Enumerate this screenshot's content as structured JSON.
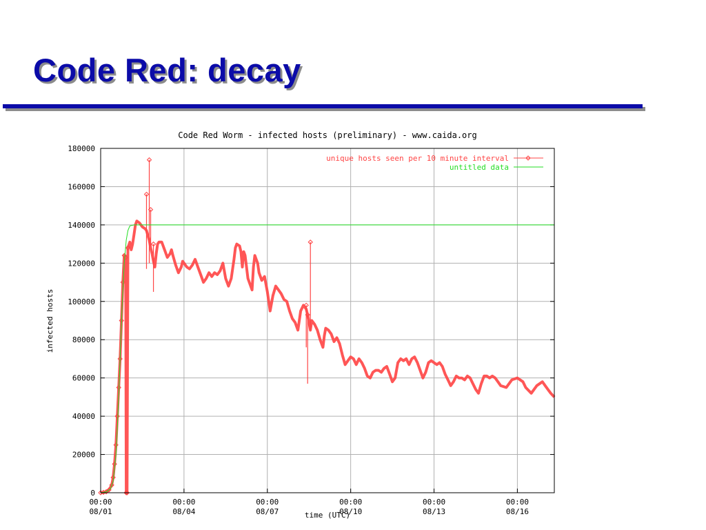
{
  "slide": {
    "title": "Code Red: decay"
  },
  "colors": {
    "title": "#0b0ba8",
    "rule": "#0b0ba8",
    "series_hosts": "#ff4444",
    "series_untitled": "#22dd22",
    "grid": "#b0b0b0"
  },
  "chart_data": {
    "type": "line",
    "title": "Code Red Worm - infected hosts (preliminary) - www.caida.org",
    "xlabel": "time (UTC)",
    "ylabel": "infected hosts",
    "ylim": [
      0,
      180000
    ],
    "xlim_days": [
      0,
      16.33
    ],
    "grid": true,
    "legend_position": "top-right",
    "x_tick_days": [
      0,
      3,
      6,
      9,
      12,
      15
    ],
    "x_ticks": [
      [
        "00:00",
        "08/01"
      ],
      [
        "00:00",
        "08/04"
      ],
      [
        "00:00",
        "08/07"
      ],
      [
        "00:00",
        "08/10"
      ],
      [
        "00:00",
        "08/13"
      ],
      [
        "00:00",
        "08/16"
      ]
    ],
    "y_ticks": [
      0,
      20000,
      40000,
      60000,
      80000,
      100000,
      120000,
      140000,
      160000,
      180000
    ],
    "y_tick_labels": [
      "0",
      "20000",
      "40000",
      "60000",
      "80000",
      "100000",
      "120000",
      "140000",
      "160000",
      "180000"
    ],
    "series": [
      {
        "name": "unique hosts seen per 10 minute interval",
        "color": "#ff4444",
        "marker": "diamond",
        "points": [
          [
            0.0,
            0
          ],
          [
            0.1,
            200
          ],
          [
            0.2,
            500
          ],
          [
            0.3,
            1500
          ],
          [
            0.4,
            4000
          ],
          [
            0.45,
            8000
          ],
          [
            0.5,
            15000
          ],
          [
            0.55,
            25000
          ],
          [
            0.6,
            40000
          ],
          [
            0.65,
            55000
          ],
          [
            0.7,
            70000
          ],
          [
            0.75,
            90000
          ],
          [
            0.8,
            110000
          ],
          [
            0.85,
            124000
          ],
          [
            0.9,
            123000
          ],
          [
            0.92,
            0
          ],
          [
            0.95,
            0
          ],
          [
            0.98,
            128000
          ],
          [
            1.05,
            131000
          ],
          [
            1.1,
            127000
          ],
          [
            1.15,
            130000
          ],
          [
            1.2,
            135000
          ],
          [
            1.25,
            140000
          ],
          [
            1.3,
            142000
          ],
          [
            1.4,
            141000
          ],
          [
            1.5,
            139000
          ],
          [
            1.6,
            138000
          ],
          [
            1.65,
            137000
          ],
          [
            1.75,
            132000
          ],
          [
            1.8,
            128000
          ],
          [
            1.85,
            125000
          ],
          [
            1.9,
            121000
          ],
          [
            1.95,
            118000
          ],
          [
            2.0,
            125000
          ],
          [
            2.05,
            130000
          ],
          [
            2.1,
            131000
          ],
          [
            2.2,
            131000
          ],
          [
            2.3,
            127000
          ],
          [
            2.4,
            123000
          ],
          [
            2.5,
            125000
          ],
          [
            2.55,
            127000
          ],
          [
            2.6,
            124000
          ],
          [
            2.7,
            119000
          ],
          [
            2.8,
            115000
          ],
          [
            2.9,
            118000
          ],
          [
            2.95,
            121000
          ],
          [
            3.0,
            120000
          ],
          [
            3.1,
            118000
          ],
          [
            3.2,
            117000
          ],
          [
            3.3,
            119000
          ],
          [
            3.4,
            122000
          ],
          [
            3.5,
            118000
          ],
          [
            3.6,
            114000
          ],
          [
            3.7,
            110000
          ],
          [
            3.8,
            112000
          ],
          [
            3.9,
            115000
          ],
          [
            4.0,
            113000
          ],
          [
            4.1,
            115000
          ],
          [
            4.2,
            114000
          ],
          [
            4.3,
            116000
          ],
          [
            4.4,
            120000
          ],
          [
            4.5,
            112000
          ],
          [
            4.6,
            108000
          ],
          [
            4.7,
            112000
          ],
          [
            4.8,
            122000
          ],
          [
            4.85,
            128000
          ],
          [
            4.9,
            130000
          ],
          [
            5.0,
            129000
          ],
          [
            5.05,
            126000
          ],
          [
            5.1,
            118000
          ],
          [
            5.15,
            126000
          ],
          [
            5.2,
            124000
          ],
          [
            5.3,
            112000
          ],
          [
            5.4,
            108000
          ],
          [
            5.45,
            106000
          ],
          [
            5.5,
            118000
          ],
          [
            5.55,
            124000
          ],
          [
            5.6,
            122000
          ],
          [
            5.65,
            120000
          ],
          [
            5.7,
            115000
          ],
          [
            5.8,
            111000
          ],
          [
            5.9,
            113000
          ],
          [
            6.0,
            105000
          ],
          [
            6.05,
            100000
          ],
          [
            6.1,
            95000
          ],
          [
            6.2,
            103000
          ],
          [
            6.3,
            108000
          ],
          [
            6.4,
            106000
          ],
          [
            6.5,
            104000
          ],
          [
            6.6,
            101000
          ],
          [
            6.7,
            100000
          ],
          [
            6.8,
            95000
          ],
          [
            6.9,
            91000
          ],
          [
            7.0,
            89000
          ],
          [
            7.1,
            85000
          ],
          [
            7.2,
            95000
          ],
          [
            7.3,
            98000
          ],
          [
            7.4,
            96000
          ],
          [
            7.45,
            93000
          ],
          [
            7.55,
            85000
          ],
          [
            7.6,
            90000
          ],
          [
            7.7,
            88000
          ],
          [
            7.8,
            85000
          ],
          [
            7.9,
            80000
          ],
          [
            8.0,
            76000
          ],
          [
            8.05,
            82000
          ],
          [
            8.1,
            86000
          ],
          [
            8.2,
            85000
          ],
          [
            8.3,
            83000
          ],
          [
            8.4,
            79000
          ],
          [
            8.5,
            81000
          ],
          [
            8.6,
            78000
          ],
          [
            8.7,
            72000
          ],
          [
            8.8,
            67000
          ],
          [
            8.9,
            69000
          ],
          [
            9.0,
            71000
          ],
          [
            9.1,
            70000
          ],
          [
            9.2,
            67000
          ],
          [
            9.3,
            70000
          ],
          [
            9.4,
            68000
          ],
          [
            9.5,
            65000
          ],
          [
            9.6,
            61000
          ],
          [
            9.7,
            60000
          ],
          [
            9.8,
            63000
          ],
          [
            9.9,
            64000
          ],
          [
            10.0,
            64000
          ],
          [
            10.1,
            63000
          ],
          [
            10.2,
            65000
          ],
          [
            10.3,
            66000
          ],
          [
            10.4,
            62000
          ],
          [
            10.5,
            58000
          ],
          [
            10.6,
            60000
          ],
          [
            10.7,
            68000
          ],
          [
            10.8,
            70000
          ],
          [
            10.9,
            69000
          ],
          [
            11.0,
            70000
          ],
          [
            11.1,
            67000
          ],
          [
            11.2,
            70000
          ],
          [
            11.3,
            71000
          ],
          [
            11.4,
            68000
          ],
          [
            11.5,
            64000
          ],
          [
            11.6,
            60000
          ],
          [
            11.7,
            63000
          ],
          [
            11.8,
            68000
          ],
          [
            11.9,
            69000
          ],
          [
            12.0,
            68000
          ],
          [
            12.1,
            67000
          ],
          [
            12.2,
            68000
          ],
          [
            12.3,
            66000
          ],
          [
            12.4,
            62000
          ],
          [
            12.5,
            59000
          ],
          [
            12.6,
            56000
          ],
          [
            12.7,
            58000
          ],
          [
            12.8,
            61000
          ],
          [
            12.9,
            60000
          ],
          [
            13.0,
            60000
          ],
          [
            13.1,
            59000
          ],
          [
            13.2,
            61000
          ],
          [
            13.3,
            60000
          ],
          [
            13.4,
            57000
          ],
          [
            13.5,
            54000
          ],
          [
            13.6,
            52000
          ],
          [
            13.7,
            57000
          ],
          [
            13.8,
            61000
          ],
          [
            13.9,
            61000
          ],
          [
            14.0,
            60000
          ],
          [
            14.1,
            61000
          ],
          [
            14.2,
            60000
          ],
          [
            14.3,
            58000
          ],
          [
            14.4,
            56000
          ],
          [
            14.6,
            55000
          ],
          [
            14.8,
            59000
          ],
          [
            15.0,
            60000
          ],
          [
            15.2,
            58000
          ],
          [
            15.3,
            55000
          ],
          [
            15.5,
            52000
          ],
          [
            15.7,
            56000
          ],
          [
            15.9,
            58000
          ],
          [
            16.0,
            56000
          ],
          [
            16.1,
            54000
          ],
          [
            16.2,
            52000
          ],
          [
            16.33,
            50000
          ]
        ],
        "spikes": [
          [
            1.65,
            117000,
            156000
          ],
          [
            1.75,
            120000,
            174000
          ],
          [
            1.8,
            129000,
            148000
          ],
          [
            1.9,
            105000,
            130000
          ],
          [
            7.4,
            76000,
            98000
          ],
          [
            7.45,
            57000,
            93000
          ],
          [
            7.55,
            85000,
            131000
          ]
        ]
      },
      {
        "name": "untitled data",
        "color": "#22dd22",
        "marker": "none",
        "points": [
          [
            0.0,
            0
          ],
          [
            0.2,
            500
          ],
          [
            0.35,
            2000
          ],
          [
            0.45,
            6000
          ],
          [
            0.55,
            20000
          ],
          [
            0.62,
            40000
          ],
          [
            0.7,
            70000
          ],
          [
            0.78,
            100000
          ],
          [
            0.85,
            120000
          ],
          [
            0.92,
            132000
          ],
          [
            0.98,
            137000
          ],
          [
            1.05,
            139500
          ],
          [
            1.2,
            140000
          ],
          [
            16.33,
            140000
          ]
        ]
      }
    ]
  }
}
